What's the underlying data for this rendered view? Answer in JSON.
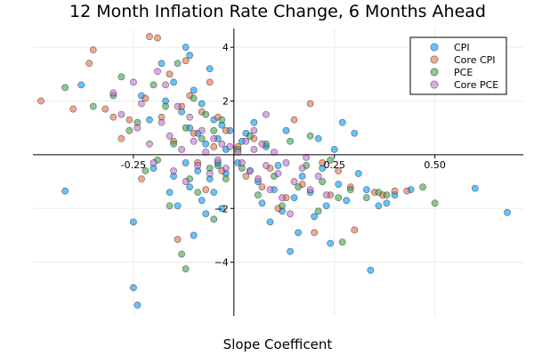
{
  "chart_data": {
    "type": "scatter",
    "title": "12 Month Inflation Rate Change, 6 Months Ahead",
    "xlabel": "Slope Coefficent",
    "ylabel": "",
    "xlim": [
      -0.5,
      0.72
    ],
    "ylim": [
      -6,
      4.7
    ],
    "xticks": [
      -0.25,
      0.25,
      0.5
    ],
    "xtick_labels": [
      "-0.25",
      "0.25",
      "0.50"
    ],
    "yticks": [
      -4,
      -2,
      2,
      4
    ],
    "ytick_labels": [
      "−4",
      "−2",
      "2",
      "4"
    ],
    "grid": true,
    "legend_position": "top-right",
    "series": [
      {
        "name": "CPI",
        "color": "#009af9",
        "points": [
          [
            -0.42,
            -1.35
          ],
          [
            -0.38,
            2.6
          ],
          [
            -0.25,
            -2.5
          ],
          [
            -0.25,
            -4.95
          ],
          [
            -0.24,
            -5.6
          ],
          [
            -0.23,
            2.2
          ],
          [
            -0.21,
            1.3
          ],
          [
            -0.2,
            -0.5
          ],
          [
            -0.18,
            3.4
          ],
          [
            -0.17,
            2.0
          ],
          [
            -0.16,
            -1.4
          ],
          [
            -0.15,
            2.7
          ],
          [
            -0.15,
            -0.8
          ],
          [
            -0.14,
            -1.9
          ],
          [
            -0.13,
            1.6
          ],
          [
            -0.12,
            4.0
          ],
          [
            -0.12,
            -0.3
          ],
          [
            -0.11,
            3.7
          ],
          [
            -0.11,
            1.0
          ],
          [
            -0.11,
            -1.2
          ],
          [
            -0.1,
            -3.0
          ],
          [
            -0.1,
            2.4
          ],
          [
            -0.09,
            -0.6
          ],
          [
            -0.09,
            0.8
          ],
          [
            -0.08,
            -1.7
          ],
          [
            -0.08,
            1.9
          ],
          [
            -0.07,
            -2.2
          ],
          [
            -0.07,
            0.4
          ],
          [
            -0.06,
            3.2
          ],
          [
            -0.06,
            -0.9
          ],
          [
            -0.05,
            1.3
          ],
          [
            -0.05,
            -1.4
          ],
          [
            -0.04,
            0.6
          ],
          [
            -0.04,
            -0.4
          ],
          [
            -0.03,
            1.1
          ],
          [
            -0.03,
            -2.0
          ],
          [
            -0.02,
            0.2
          ],
          [
            -0.02,
            -0.7
          ],
          [
            -0.01,
            0.9
          ],
          [
            0.01,
            -0.3
          ],
          [
            0.02,
            0.5
          ],
          [
            0.03,
            0.8
          ],
          [
            0.04,
            -0.6
          ],
          [
            0.05,
            1.2
          ],
          [
            0.06,
            -1.0
          ],
          [
            0.07,
            -1.8
          ],
          [
            0.08,
            0.3
          ],
          [
            0.09,
            -2.5
          ],
          [
            0.1,
            -1.3
          ],
          [
            0.11,
            -0.4
          ],
          [
            0.12,
            -2.1
          ],
          [
            0.13,
            0.9
          ],
          [
            0.14,
            -3.6
          ],
          [
            0.15,
            -1.6
          ],
          [
            0.16,
            -2.9
          ],
          [
            0.17,
            -0.8
          ],
          [
            0.19,
            -1.4
          ],
          [
            0.2,
            -2.3
          ],
          [
            0.21,
            0.6
          ],
          [
            0.22,
            -0.5
          ],
          [
            0.23,
            -1.9
          ],
          [
            0.24,
            -3.3
          ],
          [
            0.25,
            0.2
          ],
          [
            0.26,
            -1.1
          ],
          [
            0.27,
            1.2
          ],
          [
            0.28,
            -1.7
          ],
          [
            0.3,
            0.8
          ],
          [
            0.31,
            -0.7
          ],
          [
            0.33,
            -1.3
          ],
          [
            0.34,
            -4.3
          ],
          [
            0.36,
            -1.9
          ],
          [
            0.38,
            -1.8
          ],
          [
            0.4,
            -1.5
          ],
          [
            0.44,
            -1.3
          ],
          [
            0.6,
            -1.25
          ],
          [
            0.68,
            -2.15
          ]
        ]
      },
      {
        "name": "Core CPI",
        "color": "#e26f46",
        "points": [
          [
            -0.48,
            2.0
          ],
          [
            -0.4,
            1.7
          ],
          [
            -0.36,
            3.4
          ],
          [
            -0.35,
            3.9
          ],
          [
            -0.32,
            1.7
          ],
          [
            -0.3,
            1.4
          ],
          [
            -0.28,
            0.6
          ],
          [
            -0.26,
            1.3
          ],
          [
            -0.23,
            -0.9
          ],
          [
            -0.22,
            2.1
          ],
          [
            -0.21,
            4.4
          ],
          [
            -0.19,
            4.35
          ],
          [
            -0.18,
            1.4
          ],
          [
            -0.16,
            3.0
          ],
          [
            -0.15,
            0.5
          ],
          [
            -0.14,
            -3.15
          ],
          [
            -0.13,
            1.8
          ],
          [
            -0.12,
            3.5
          ],
          [
            -0.11,
            2.2
          ],
          [
            -0.1,
            0.8
          ],
          [
            -0.09,
            -0.3
          ],
          [
            -0.08,
            1.6
          ],
          [
            -0.07,
            -1.3
          ],
          [
            -0.06,
            2.7
          ],
          [
            -0.05,
            0.3
          ],
          [
            -0.04,
            1.4
          ],
          [
            -0.03,
            -0.6
          ],
          [
            -0.02,
            0.9
          ],
          [
            0.01,
            0.3
          ],
          [
            0.03,
            -0.8
          ],
          [
            0.05,
            0.6
          ],
          [
            0.07,
            -1.2
          ],
          [
            0.09,
            -0.5
          ],
          [
            0.11,
            -2.0
          ],
          [
            0.13,
            -1.6
          ],
          [
            0.15,
            1.3
          ],
          [
            0.17,
            -1.1
          ],
          [
            0.19,
            1.9
          ],
          [
            0.2,
            -2.9
          ],
          [
            0.22,
            -0.3
          ],
          [
            0.24,
            -1.5
          ],
          [
            0.26,
            -0.6
          ],
          [
            0.29,
            -1.2
          ],
          [
            0.3,
            -2.8
          ],
          [
            0.35,
            -1.4
          ],
          [
            0.37,
            -1.5
          ],
          [
            0.4,
            -1.35
          ],
          [
            0.43,
            -1.35
          ]
        ]
      },
      {
        "name": "PCE",
        "color": "#3da44d",
        "points": [
          [
            -0.42,
            2.5
          ],
          [
            -0.35,
            1.8
          ],
          [
            -0.3,
            2.2
          ],
          [
            -0.28,
            2.9
          ],
          [
            -0.26,
            0.9
          ],
          [
            -0.24,
            1.2
          ],
          [
            -0.22,
            -0.6
          ],
          [
            -0.2,
            2.6
          ],
          [
            -0.19,
            -0.2
          ],
          [
            -0.17,
            1.8
          ],
          [
            -0.16,
            -1.9
          ],
          [
            -0.15,
            0.4
          ],
          [
            -0.14,
            3.4
          ],
          [
            -0.13,
            -3.7
          ],
          [
            -0.12,
            -4.25
          ],
          [
            -0.12,
            1.0
          ],
          [
            -0.11,
            -0.9
          ],
          [
            -0.1,
            2.1
          ],
          [
            -0.09,
            -1.4
          ],
          [
            -0.08,
            0.6
          ],
          [
            -0.07,
            1.5
          ],
          [
            -0.06,
            -0.5
          ],
          [
            -0.05,
            -2.4
          ],
          [
            -0.05,
            0.9
          ],
          [
            -0.04,
            -0.3
          ],
          [
            -0.03,
            1.3
          ],
          [
            -0.02,
            -0.9
          ],
          [
            0.01,
            0.2
          ],
          [
            0.02,
            -0.5
          ],
          [
            0.04,
            0.7
          ],
          [
            0.06,
            -1.5
          ],
          [
            0.08,
            0.4
          ],
          [
            0.1,
            -0.8
          ],
          [
            0.12,
            -1.9
          ],
          [
            0.14,
            0.5
          ],
          [
            0.16,
            -1.2
          ],
          [
            0.18,
            -0.4
          ],
          [
            0.19,
            0.7
          ],
          [
            0.21,
            -2.1
          ],
          [
            0.22,
            -1.0
          ],
          [
            0.24,
            -0.2
          ],
          [
            0.26,
            -1.6
          ],
          [
            0.27,
            -3.25
          ],
          [
            0.29,
            -1.3
          ],
          [
            0.33,
            -1.6
          ],
          [
            0.36,
            -1.4
          ],
          [
            0.38,
            -1.5
          ],
          [
            0.47,
            -1.2
          ],
          [
            0.5,
            -1.8
          ]
        ]
      },
      {
        "name": "Core PCE",
        "color": "#c271d2",
        "points": [
          [
            -0.3,
            2.3
          ],
          [
            -0.28,
            1.5
          ],
          [
            -0.25,
            2.7
          ],
          [
            -0.24,
            1.0
          ],
          [
            -0.23,
            1.9
          ],
          [
            -0.21,
            0.4
          ],
          [
            -0.2,
            -0.3
          ],
          [
            -0.19,
            3.1
          ],
          [
            -0.18,
            1.2
          ],
          [
            -0.17,
            2.6
          ],
          [
            -0.16,
            0.7
          ],
          [
            -0.15,
            -0.6
          ],
          [
            -0.14,
            1.8
          ],
          [
            -0.13,
            0.2
          ],
          [
            -0.12,
            -1.0
          ],
          [
            -0.11,
            1.4
          ],
          [
            -0.1,
            0.5
          ],
          [
            -0.09,
            -0.4
          ],
          [
            -0.08,
            0.9
          ],
          [
            -0.07,
            0.1
          ],
          [
            -0.06,
            -0.7
          ],
          [
            -0.05,
            0.6
          ],
          [
            -0.04,
            -0.2
          ],
          [
            -0.03,
            0.4
          ],
          [
            -0.02,
            -0.5
          ],
          [
            -0.01,
            0.3
          ],
          [
            0.01,
            0.1
          ],
          [
            0.02,
            -0.3
          ],
          [
            0.03,
            0.5
          ],
          [
            0.04,
            -0.6
          ],
          [
            0.05,
            0.2
          ],
          [
            0.06,
            -0.9
          ],
          [
            0.07,
            0.4
          ],
          [
            0.08,
            -0.4
          ],
          [
            0.09,
            -1.3
          ],
          [
            0.1,
            0.1
          ],
          [
            0.11,
            -0.7
          ],
          [
            0.12,
            -1.6
          ],
          [
            0.13,
            -0.3
          ],
          [
            0.14,
            -2.2
          ],
          [
            0.15,
            -1.0
          ],
          [
            0.17,
            -0.5
          ],
          [
            0.19,
            -1.3
          ],
          [
            0.21,
            -0.8
          ],
          [
            0.23,
            -1.5
          ],
          [
            0.08,
            1.5
          ],
          [
            0.05,
            0.9
          ],
          [
            0.18,
            -0.1
          ]
        ]
      }
    ]
  }
}
